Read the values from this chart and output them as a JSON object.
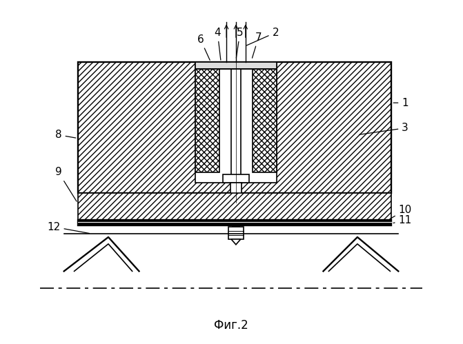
{
  "title": "Фиг.2",
  "bg_color": "#ffffff",
  "line_color": "#000000",
  "fig_width": 6.71,
  "fig_height": 4.99
}
